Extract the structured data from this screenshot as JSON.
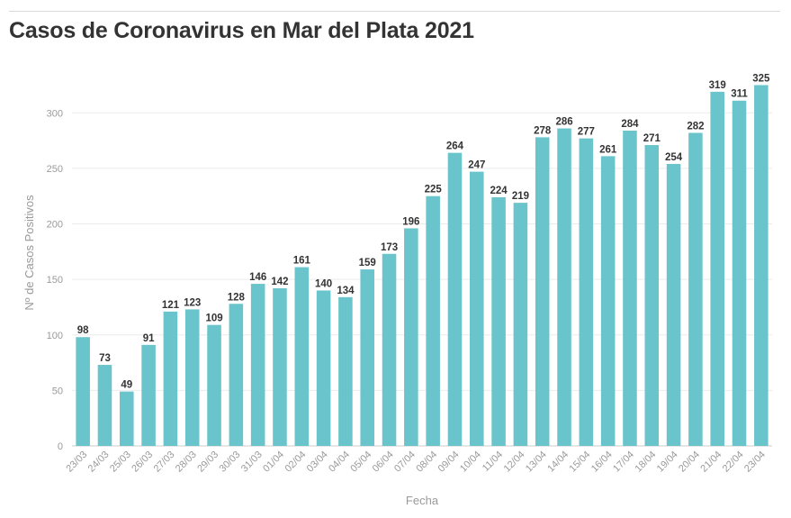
{
  "title": "Casos de Coronavirus en Mar del Plata 2021",
  "chart_data": {
    "type": "bar",
    "title": "Casos de Coronavirus en Mar del Plata 2021",
    "xlabel": "Fecha",
    "ylabel": "Nº de Casos Positivos",
    "ylim": [
      0,
      340
    ],
    "yticks": [
      0,
      50,
      100,
      150,
      200,
      250,
      300
    ],
    "grid": true,
    "bar_color": "#69c5cb",
    "categories": [
      "23/03",
      "24/03",
      "25/03",
      "26/03",
      "27/03",
      "28/03",
      "29/03",
      "30/03",
      "31/03",
      "01/04",
      "02/04",
      "03/04",
      "04/04",
      "05/04",
      "06/04",
      "07/04",
      "08/04",
      "09/04",
      "10/04",
      "11/04",
      "12/04",
      "13/04",
      "14/04",
      "15/04",
      "16/04",
      "17/04",
      "18/04",
      "19/04",
      "20/04",
      "21/04",
      "22/04",
      "23/04"
    ],
    "values": [
      98,
      73,
      49,
      91,
      121,
      123,
      109,
      128,
      146,
      142,
      161,
      140,
      134,
      159,
      173,
      196,
      225,
      264,
      247,
      224,
      219,
      278,
      286,
      277,
      261,
      284,
      271,
      254,
      282,
      319,
      311,
      325
    ]
  }
}
